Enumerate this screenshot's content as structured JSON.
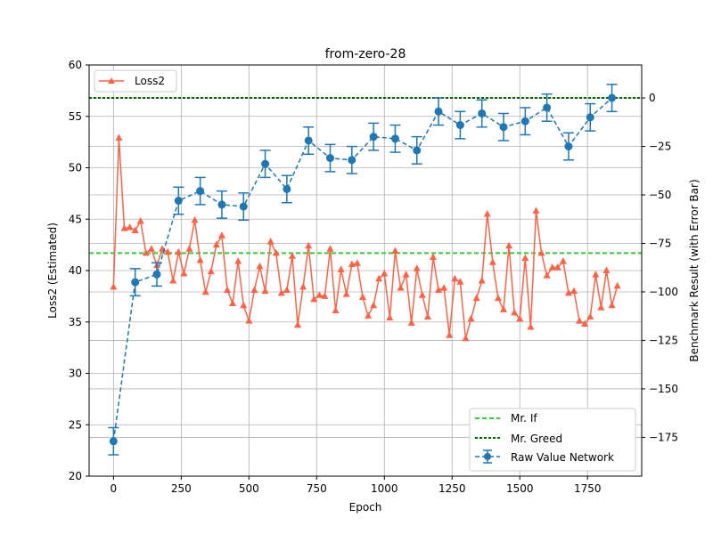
{
  "chart_data": {
    "type": "line",
    "title": "from-zero-28",
    "xlabel": "Epoch",
    "ylabel_left": "Loss2 (Estimated)",
    "ylabel_right": "Benchmark Result (with Error Bar)",
    "xlim": [
      -90,
      1950
    ],
    "ylim_left": [
      20,
      60
    ],
    "ylim_right": [
      -195,
      17
    ],
    "x_ticks": [
      0,
      250,
      500,
      750,
      1000,
      1250,
      1500,
      1750
    ],
    "x_tick_labels": [
      "0",
      "250",
      "500",
      "750",
      "1000",
      "1250",
      "1500",
      "1750"
    ],
    "y_left_ticks": [
      20,
      25,
      30,
      35,
      40,
      45,
      50,
      55,
      60
    ],
    "y_left_tick_labels": [
      "20",
      "25",
      "30",
      "35",
      "40",
      "45",
      "50",
      "55",
      "60"
    ],
    "y_right_ticks": [
      0,
      -25,
      -50,
      -75,
      -100,
      -125,
      -150,
      -175
    ],
    "y_right_tick_labels": [
      "0",
      "−25",
      "−50",
      "−75",
      "−100",
      "−125",
      "−150",
      "−175"
    ],
    "grid": true,
    "loss_series": {
      "name": "Loss2",
      "color": "#ff6347",
      "marker": "triangle",
      "x": [
        0,
        20,
        40,
        60,
        80,
        100,
        120,
        140,
        160,
        180,
        200,
        220,
        240,
        260,
        280,
        300,
        320,
        340,
        360,
        380,
        400,
        420,
        440,
        460,
        480,
        500,
        520,
        540,
        560,
        580,
        600,
        620,
        640,
        660,
        680,
        700,
        720,
        740,
        760,
        780,
        800,
        820,
        840,
        860,
        880,
        900,
        920,
        940,
        960,
        980,
        1000,
        1020,
        1040,
        1060,
        1080,
        1100,
        1120,
        1140,
        1160,
        1180,
        1200,
        1220,
        1240,
        1260,
        1280,
        1300,
        1320,
        1340,
        1360,
        1380,
        1400,
        1420,
        1440,
        1460,
        1480,
        1500,
        1520,
        1540,
        1560,
        1580,
        1600,
        1620,
        1640,
        1660,
        1680,
        1700,
        1720,
        1740,
        1760,
        1780,
        1800,
        1820,
        1840,
        1860
      ],
      "y": [
        38.4,
        52.9,
        44.1,
        44.2,
        43.9,
        44.8,
        41.7,
        42.1,
        40.5,
        42.1,
        41.8,
        39.0,
        41.8,
        39.7,
        42.1,
        44.9,
        41.0,
        37.9,
        39.9,
        42.5,
        43.4,
        38.1,
        36.8,
        40.9,
        36.6,
        35.1,
        38.1,
        40.4,
        38.0,
        42.8,
        41.7,
        37.8,
        38.1,
        41.4,
        34.7,
        38.4,
        42.4,
        37.2,
        37.6,
        37.5,
        42.1,
        36.1,
        40.1,
        37.7,
        40.6,
        40.7,
        37.4,
        35.6,
        36.6,
        39.2,
        39.7,
        35.4,
        41.9,
        38.3,
        39.6,
        34.9,
        40.2,
        37.6,
        35.5,
        41.3,
        38.1,
        38.3,
        33.7,
        39.2,
        38.9,
        33.4,
        35.3,
        37.3,
        39.0,
        45.5,
        40.8,
        37.3,
        36.2,
        42.4,
        35.9,
        35.3,
        41.2,
        34.5,
        45.8,
        41.7,
        39.5,
        40.3,
        40.3,
        40.9,
        37.8,
        38.0,
        35.1,
        34.8,
        35.5,
        39.6,
        36.4,
        40.0,
        36.6,
        38.5
      ]
    },
    "benchmark_series": {
      "name": "Raw Value Network",
      "color": "#1f77b4",
      "x": [
        0,
        80,
        160,
        240,
        320,
        400,
        480,
        560,
        640,
        720,
        800,
        880,
        960,
        1040,
        1120,
        1200,
        1280,
        1360,
        1440,
        1520,
        1600,
        1680,
        1760,
        1840
      ],
      "y": [
        -177,
        -95,
        -91,
        -53,
        -48,
        -55,
        -56,
        -34,
        -47,
        -22,
        -31,
        -32,
        -20,
        -21,
        -27,
        -7,
        -14,
        -8,
        -15,
        -12,
        -5,
        -25,
        -10,
        0
      ],
      "err": [
        7,
        7,
        6,
        7,
        7,
        7,
        7,
        7,
        7,
        7,
        7,
        7,
        7,
        7,
        7,
        7,
        7,
        7,
        7,
        7,
        7,
        7,
        7,
        7
      ]
    },
    "reference_lines": [
      {
        "name": "Mr. If",
        "value": -80,
        "color": "#33cc33",
        "style": "dashed"
      },
      {
        "name": "Mr. Greed",
        "value": 0,
        "color": "#006400",
        "style": "dashed"
      }
    ],
    "legend_left": {
      "placement": "top-left",
      "entries": [
        "Loss2"
      ]
    },
    "legend_right": {
      "placement": "bottom-right",
      "entries": [
        "Mr. If",
        "Mr. Greed",
        "Raw Value Network"
      ]
    }
  }
}
